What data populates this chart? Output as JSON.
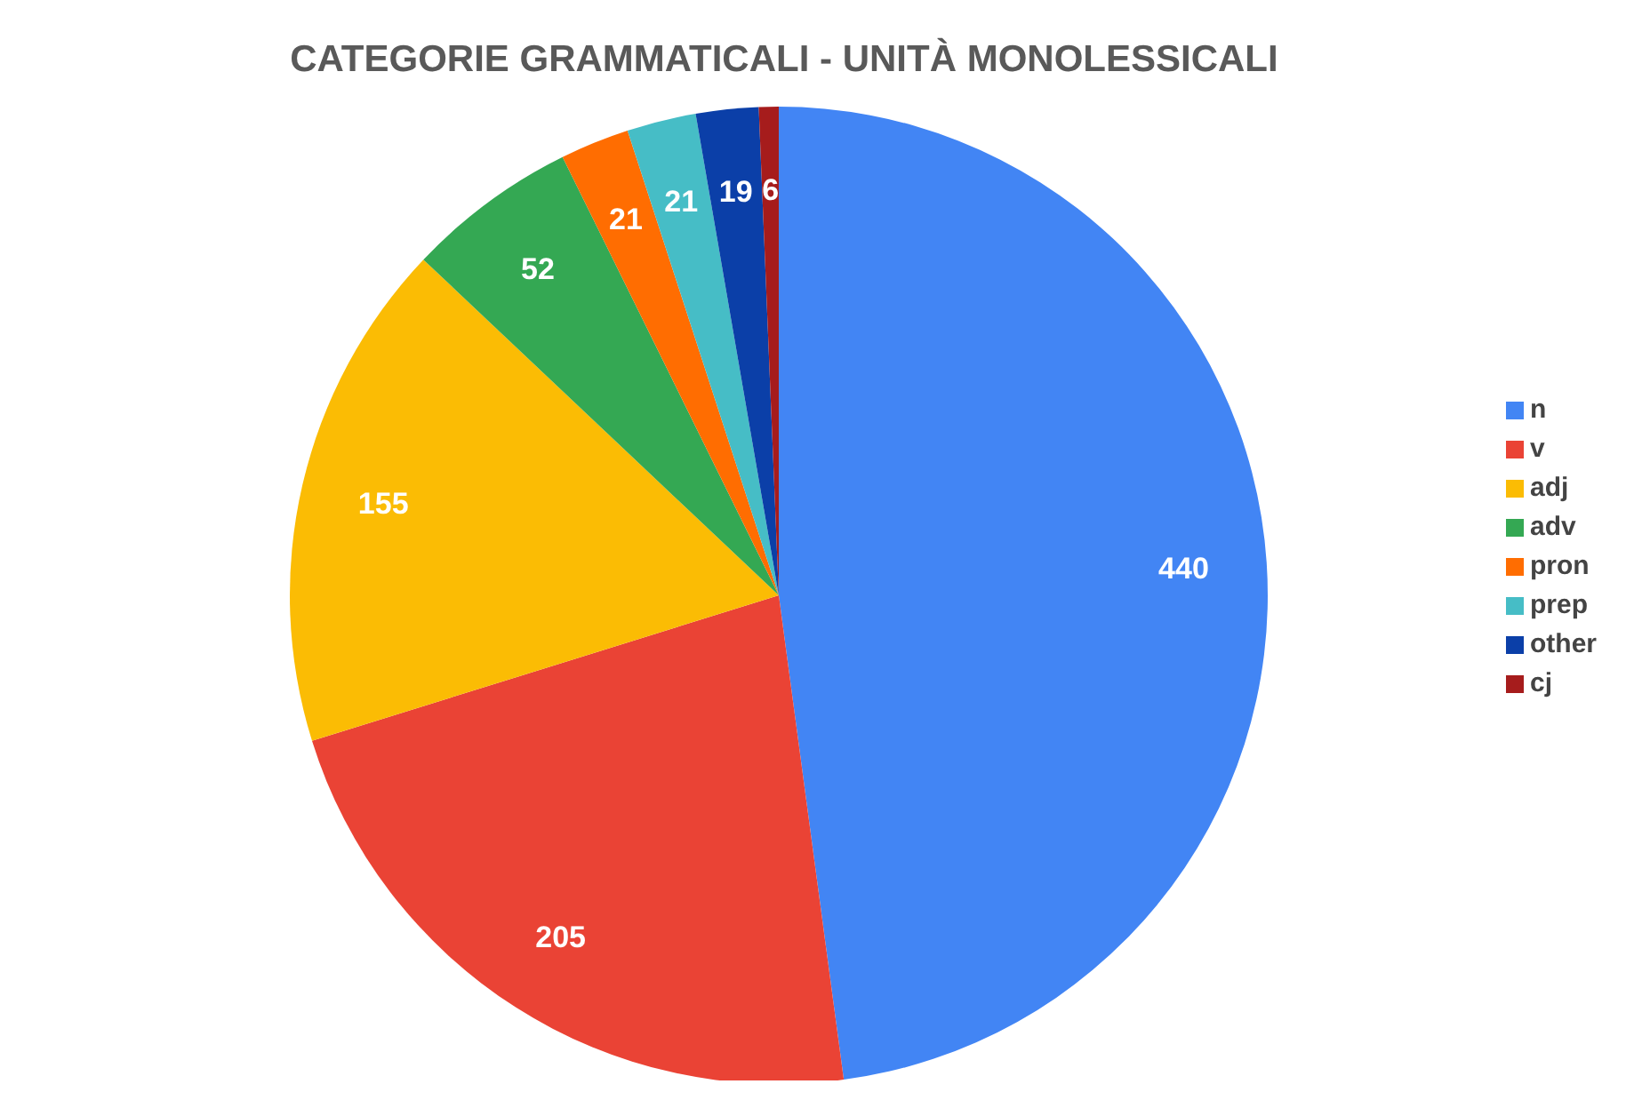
{
  "chart_data": {
    "type": "pie",
    "title": "CATEGORIE GRAMMATICALI - UNITÀ MONOLESSICALI",
    "categories": [
      "n",
      "v",
      "adj",
      "adv",
      "pron",
      "prep",
      "other",
      "cj"
    ],
    "values": [
      440,
      205,
      155,
      52,
      21,
      21,
      19,
      6
    ],
    "colors": [
      "#4285f4",
      "#ea4335",
      "#fbbc04",
      "#34a853",
      "#ff6d01",
      "#46bdc6",
      "#0b3fa8",
      "#a61c1c"
    ],
    "data_labels": true,
    "legend": "right"
  }
}
